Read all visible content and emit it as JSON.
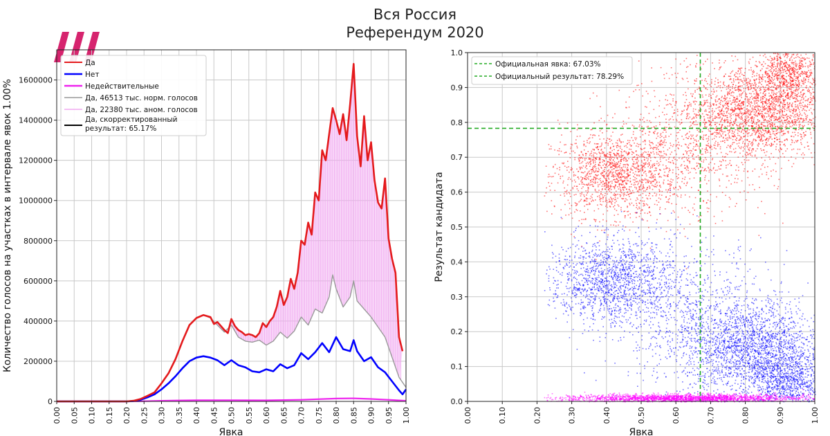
{
  "title": "Вся Россия",
  "subtitle": "Референдум 2020",
  "chart_data": [
    {
      "type": "line",
      "xlabel": "Явка",
      "ylabel": "Количество голосов на участках в интервале явок 1.00%",
      "xlim": [
        0.0,
        1.0
      ],
      "ylim": [
        0,
        1750000
      ],
      "x_ticks": [
        "0.00",
        "0.05",
        "0.10",
        "0.15",
        "0.20",
        "0.25",
        "0.30",
        "0.35",
        "0.40",
        "0.45",
        "0.50",
        "0.55",
        "0.60",
        "0.65",
        "0.70",
        "0.75",
        "0.80",
        "0.85",
        "0.90",
        "0.95",
        "1.00"
      ],
      "y_ticks": [
        "0",
        "200000",
        "400000",
        "600000",
        "800000",
        "1000000",
        "1200000",
        "1400000",
        "1600000"
      ],
      "grid": true,
      "legend_position": "top-left",
      "series": [
        {
          "name": "Да",
          "color": "#e41a1c",
          "points": [
            [
              0,
              0
            ],
            [
              0.2,
              0
            ],
            [
              0.22,
              3000
            ],
            [
              0.24,
              12000
            ],
            [
              0.26,
              28000
            ],
            [
              0.28,
              45000
            ],
            [
              0.3,
              90000
            ],
            [
              0.32,
              140000
            ],
            [
              0.34,
              210000
            ],
            [
              0.36,
              300000
            ],
            [
              0.38,
              380000
            ],
            [
              0.4,
              415000
            ],
            [
              0.42,
              430000
            ],
            [
              0.44,
              420000
            ],
            [
              0.45,
              385000
            ],
            [
              0.46,
              395000
            ],
            [
              0.47,
              375000
            ],
            [
              0.48,
              355000
            ],
            [
              0.49,
              340000
            ],
            [
              0.5,
              410000
            ],
            [
              0.51,
              375000
            ],
            [
              0.52,
              355000
            ],
            [
              0.53,
              345000
            ],
            [
              0.54,
              330000
            ],
            [
              0.55,
              335000
            ],
            [
              0.56,
              330000
            ],
            [
              0.57,
              320000
            ],
            [
              0.58,
              340000
            ],
            [
              0.59,
              390000
            ],
            [
              0.6,
              370000
            ],
            [
              0.61,
              400000
            ],
            [
              0.62,
              420000
            ],
            [
              0.63,
              470000
            ],
            [
              0.64,
              550000
            ],
            [
              0.65,
              480000
            ],
            [
              0.66,
              520000
            ],
            [
              0.67,
              610000
            ],
            [
              0.68,
              560000
            ],
            [
              0.69,
              640000
            ],
            [
              0.7,
              800000
            ],
            [
              0.71,
              780000
            ],
            [
              0.72,
              890000
            ],
            [
              0.73,
              830000
            ],
            [
              0.74,
              1040000
            ],
            [
              0.75,
              1000000
            ],
            [
              0.76,
              1250000
            ],
            [
              0.77,
              1200000
            ],
            [
              0.78,
              1330000
            ],
            [
              0.79,
              1460000
            ],
            [
              0.8,
              1400000
            ],
            [
              0.81,
              1330000
            ],
            [
              0.82,
              1430000
            ],
            [
              0.83,
              1300000
            ],
            [
              0.84,
              1480000
            ],
            [
              0.85,
              1680000
            ],
            [
              0.86,
              1320000
            ],
            [
              0.87,
              1170000
            ],
            [
              0.88,
              1420000
            ],
            [
              0.89,
              1200000
            ],
            [
              0.9,
              1290000
            ],
            [
              0.91,
              1100000
            ],
            [
              0.92,
              990000
            ],
            [
              0.93,
              960000
            ],
            [
              0.94,
              1110000
            ],
            [
              0.95,
              810000
            ],
            [
              0.96,
              710000
            ],
            [
              0.97,
              640000
            ],
            [
              0.98,
              320000
            ],
            [
              0.99,
              250000
            ]
          ]
        },
        {
          "name": "Нет",
          "color": "#0000ff",
          "points": [
            [
              0,
              0
            ],
            [
              0.2,
              0
            ],
            [
              0.22,
              2000
            ],
            [
              0.24,
              8000
            ],
            [
              0.26,
              20000
            ],
            [
              0.28,
              35000
            ],
            [
              0.3,
              60000
            ],
            [
              0.32,
              90000
            ],
            [
              0.34,
              125000
            ],
            [
              0.36,
              165000
            ],
            [
              0.38,
              200000
            ],
            [
              0.4,
              218000
            ],
            [
              0.42,
              225000
            ],
            [
              0.44,
              218000
            ],
            [
              0.46,
              205000
            ],
            [
              0.48,
              180000
            ],
            [
              0.5,
              205000
            ],
            [
              0.52,
              180000
            ],
            [
              0.54,
              170000
            ],
            [
              0.56,
              150000
            ],
            [
              0.58,
              145000
            ],
            [
              0.6,
              160000
            ],
            [
              0.62,
              150000
            ],
            [
              0.64,
              185000
            ],
            [
              0.66,
              165000
            ],
            [
              0.68,
              180000
            ],
            [
              0.7,
              240000
            ],
            [
              0.72,
              210000
            ],
            [
              0.74,
              245000
            ],
            [
              0.76,
              290000
            ],
            [
              0.78,
              245000
            ],
            [
              0.8,
              320000
            ],
            [
              0.82,
              260000
            ],
            [
              0.84,
              250000
            ],
            [
              0.85,
              305000
            ],
            [
              0.86,
              250000
            ],
            [
              0.88,
              200000
            ],
            [
              0.9,
              220000
            ],
            [
              0.92,
              170000
            ],
            [
              0.94,
              145000
            ],
            [
              0.96,
              100000
            ],
            [
              0.98,
              55000
            ],
            [
              0.99,
              35000
            ],
            [
              1.0,
              60000
            ]
          ]
        },
        {
          "name": "Недействительные",
          "color": "#ee22ee",
          "points": [
            [
              0,
              0
            ],
            [
              0.2,
              0
            ],
            [
              0.25,
              1000
            ],
            [
              0.3,
              3000
            ],
            [
              0.4,
              6000
            ],
            [
              0.5,
              6000
            ],
            [
              0.6,
              5000
            ],
            [
              0.7,
              8000
            ],
            [
              0.8,
              14000
            ],
            [
              0.85,
              15000
            ],
            [
              0.9,
              12000
            ],
            [
              0.95,
              8000
            ],
            [
              1.0,
              3000
            ]
          ]
        },
        {
          "name": "Да, 46513 тыс. норм. голосов",
          "color": "#999999",
          "points": [
            [
              0,
              0
            ],
            [
              0.2,
              0
            ],
            [
              0.22,
              3000
            ],
            [
              0.24,
              12000
            ],
            [
              0.26,
              28000
            ],
            [
              0.28,
              45000
            ],
            [
              0.3,
              90000
            ],
            [
              0.32,
              140000
            ],
            [
              0.34,
              210000
            ],
            [
              0.36,
              300000
            ],
            [
              0.38,
              380000
            ],
            [
              0.4,
              415000
            ],
            [
              0.42,
              430000
            ],
            [
              0.44,
              415000
            ],
            [
              0.46,
              380000
            ],
            [
              0.48,
              345000
            ],
            [
              0.5,
              380000
            ],
            [
              0.52,
              320000
            ],
            [
              0.54,
              300000
            ],
            [
              0.56,
              295000
            ],
            [
              0.58,
              305000
            ],
            [
              0.6,
              280000
            ],
            [
              0.62,
              300000
            ],
            [
              0.64,
              345000
            ],
            [
              0.66,
              315000
            ],
            [
              0.68,
              350000
            ],
            [
              0.7,
              420000
            ],
            [
              0.72,
              380000
            ],
            [
              0.74,
              460000
            ],
            [
              0.76,
              440000
            ],
            [
              0.78,
              520000
            ],
            [
              0.79,
              630000
            ],
            [
              0.8,
              560000
            ],
            [
              0.82,
              470000
            ],
            [
              0.84,
              520000
            ],
            [
              0.85,
              600000
            ],
            [
              0.86,
              500000
            ],
            [
              0.88,
              460000
            ],
            [
              0.9,
              420000
            ],
            [
              0.92,
              370000
            ],
            [
              0.94,
              320000
            ],
            [
              0.96,
              220000
            ],
            [
              0.98,
              120000
            ],
            [
              1.0,
              70000
            ]
          ]
        },
        {
          "name": "Да, 22380 тыс. аном. голосов",
          "color": "#f0a8f0",
          "points": []
        },
        {
          "name": "Да, скорректированный результат: 65.17%",
          "color": "#000000",
          "points": []
        }
      ]
    },
    {
      "type": "scatter",
      "xlabel": "Явка",
      "ylabel": "Результат кандидата",
      "xlim": [
        0.0,
        1.0
      ],
      "ylim": [
        0.0,
        1.0
      ],
      "x_ticks": [
        "0.00",
        "0.10",
        "0.20",
        "0.30",
        "0.40",
        "0.50",
        "0.60",
        "0.70",
        "0.80",
        "0.90",
        "1.00"
      ],
      "y_ticks": [
        "0.0",
        "0.1",
        "0.2",
        "0.3",
        "0.4",
        "0.5",
        "0.6",
        "0.7",
        "0.8",
        "0.9",
        "1.0"
      ],
      "grid": true,
      "legend_position": "top-left",
      "reference_lines": [
        {
          "name": "Официальная явка: 67.03%",
          "axis": "x",
          "value": 0.6703,
          "color": "#22aa22"
        },
        {
          "name": "Официальный результат: 78.29%",
          "axis": "y",
          "value": 0.7829,
          "color": "#22aa22"
        }
      ],
      "series": [
        {
          "name": "Да",
          "color": "#ff0000",
          "clusters": [
            {
              "cx": 0.42,
              "cy": 0.65,
              "sx": 0.09,
              "sy": 0.06,
              "n": 1400
            },
            {
              "cx": 0.83,
              "cy": 0.83,
              "sx": 0.1,
              "sy": 0.07,
              "n": 2200
            },
            {
              "cx": 0.93,
              "cy": 0.94,
              "sx": 0.05,
              "sy": 0.04,
              "n": 700
            },
            {
              "cx": 0.62,
              "cy": 0.72,
              "sx": 0.12,
              "sy": 0.1,
              "n": 700
            }
          ]
        },
        {
          "name": "Нет",
          "color": "#0000ff",
          "clusters": [
            {
              "cx": 0.41,
              "cy": 0.35,
              "sx": 0.09,
              "sy": 0.06,
              "n": 1400
            },
            {
              "cx": 0.82,
              "cy": 0.15,
              "sx": 0.1,
              "sy": 0.07,
              "n": 2200
            },
            {
              "cx": 0.93,
              "cy": 0.05,
              "sx": 0.05,
              "sy": 0.04,
              "n": 700
            },
            {
              "cx": 0.62,
              "cy": 0.26,
              "sx": 0.12,
              "sy": 0.1,
              "n": 700
            }
          ]
        },
        {
          "name": "Недействительные",
          "color": "#ff00ff",
          "clusters": [
            {
              "cx": 0.62,
              "cy": 0.01,
              "sx": 0.18,
              "sy": 0.006,
              "n": 2200
            }
          ]
        }
      ]
    }
  ],
  "icons": {
    "logo": "tv-rain-logo-icon"
  }
}
